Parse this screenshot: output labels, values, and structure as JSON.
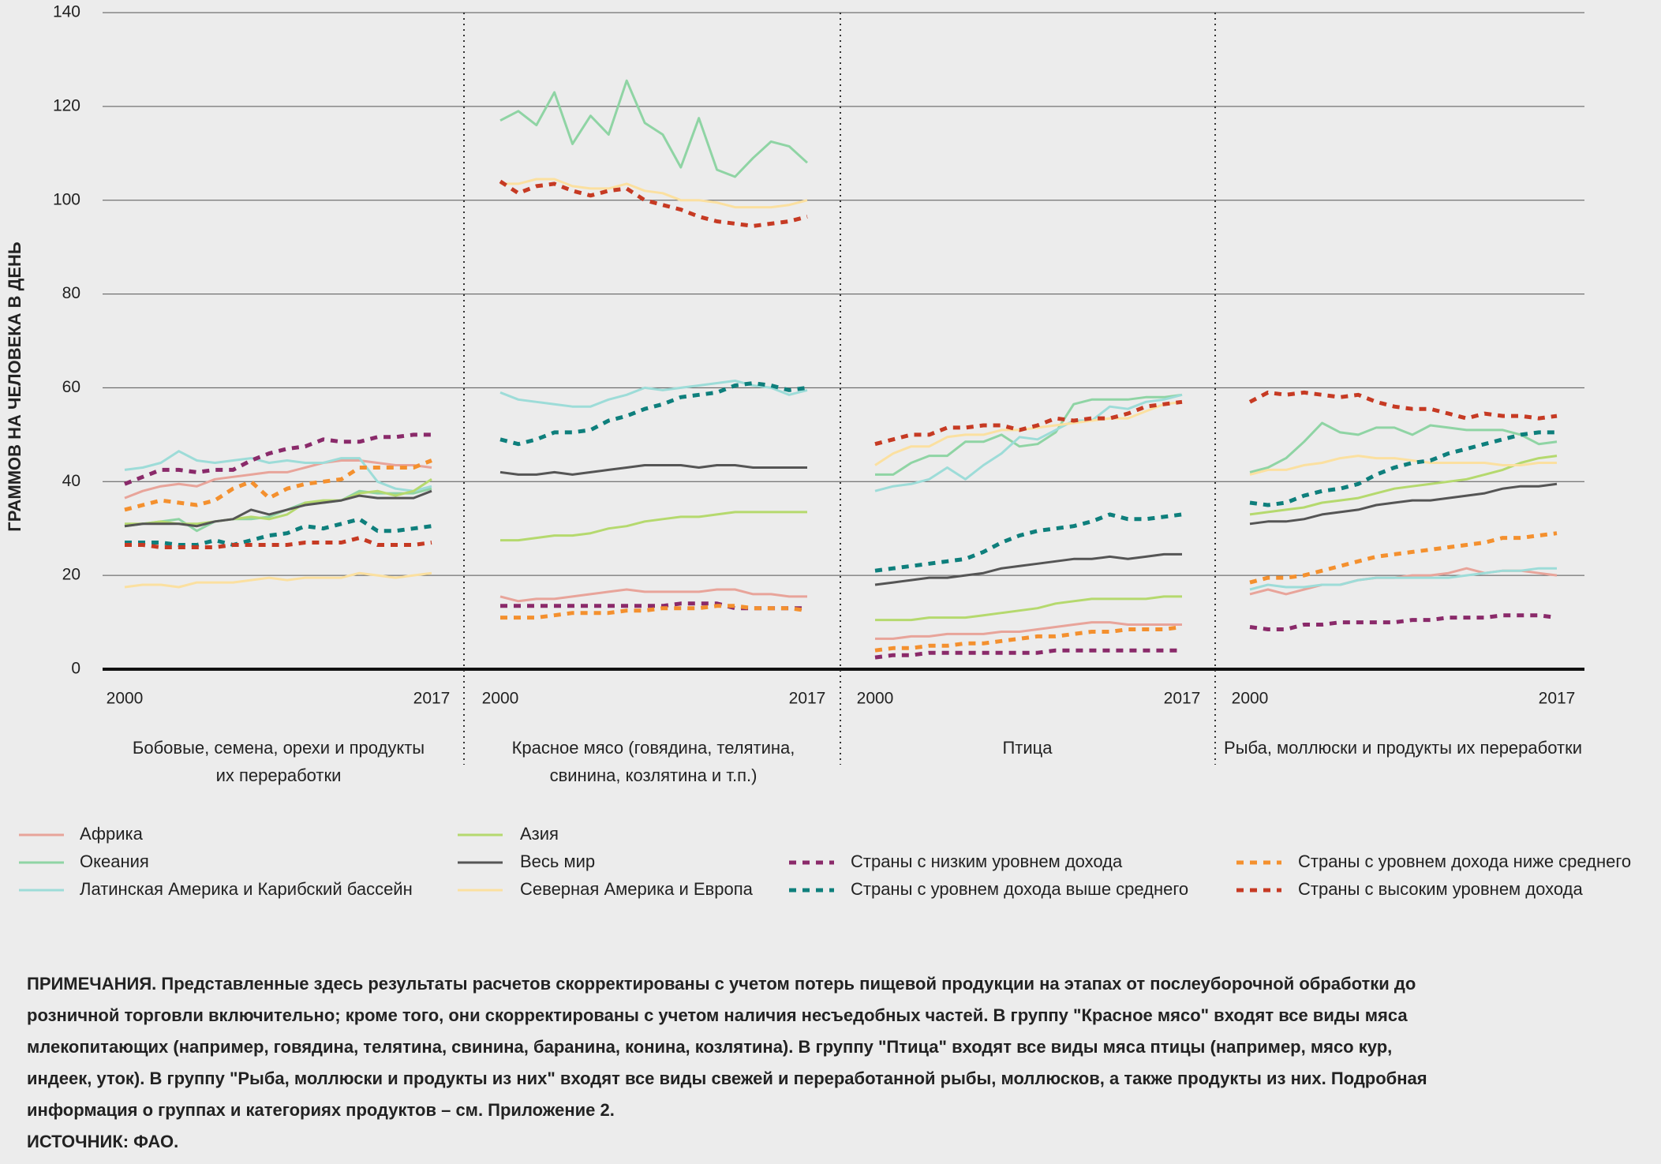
{
  "chart_data": {
    "type": "line",
    "y_label": "ГРАММОВ НА ЧЕЛОВЕКА В ДЕНЬ",
    "ylim": [
      0,
      140
    ],
    "yticks": [
      0,
      20,
      40,
      60,
      80,
      100,
      120,
      140
    ],
    "grid": true,
    "xlim": [
      2000,
      2017
    ],
    "xticks": [
      2000,
      2017
    ],
    "x": [
      2000,
      2001,
      2002,
      2003,
      2004,
      2005,
      2006,
      2007,
      2008,
      2009,
      2010,
      2011,
      2012,
      2013,
      2014,
      2015,
      2016,
      2017
    ],
    "series": [
      {
        "name": "Африка",
        "color": "#e8a49a",
        "dashed": false
      },
      {
        "name": "Океания",
        "color": "#8fd4a4",
        "dashed": false
      },
      {
        "name": "Латинская Америка и Карибский бассейн",
        "color": "#9ddcd8",
        "dashed": false
      },
      {
        "name": "Азия",
        "color": "#b5d96e",
        "dashed": false
      },
      {
        "name": "Весь мир",
        "color": "#555555",
        "dashed": false
      },
      {
        "name": "Северная Америка и Европа",
        "color": "#fbe0a0",
        "dashed": false
      },
      {
        "name": "Страны с низким уровнем дохода",
        "color": "#8a2a6a",
        "dashed": true
      },
      {
        "name": "Страны с уровнем дохода выше среднего",
        "color": "#0e7f7c",
        "dashed": true
      },
      {
        "name": "Страны с уровнем дохода ниже среднего",
        "color": "#f4902e",
        "dashed": true
      },
      {
        "name": "Страны с высоким уровнем дохода",
        "color": "#c63a23",
        "dashed": true
      }
    ],
    "panels": [
      {
        "title": [
          "Бобовые, семена, орехи и продукты",
          "их переработки"
        ],
        "values": [
          [
            36.5,
            38,
            39,
            39.5,
            39,
            40.5,
            41,
            41.5,
            42,
            42,
            43,
            44,
            44.5,
            44.5,
            44,
            43.5,
            43.5,
            43
          ],
          [
            30.5,
            31,
            31.5,
            32,
            29.5,
            31.5,
            32,
            32,
            32.5,
            34,
            35.5,
            35.5,
            36,
            38,
            37.5,
            37.5,
            37.5,
            38.5
          ],
          [
            42.5,
            43,
            44,
            46.5,
            44.5,
            44,
            44.5,
            45,
            44,
            44.5,
            44,
            44,
            45,
            45,
            40,
            38.5,
            38,
            39
          ],
          [
            31,
            31,
            31.5,
            31,
            31,
            31.5,
            32,
            32.5,
            32,
            33,
            35.5,
            36,
            36,
            37.5,
            38,
            37,
            38,
            40.5
          ],
          [
            30.5,
            31,
            31,
            31,
            30.5,
            31.5,
            32,
            34,
            33,
            34,
            35,
            35.5,
            36,
            37,
            36.5,
            36.5,
            36.5,
            38
          ],
          [
            17.5,
            18,
            18,
            17.5,
            18.5,
            18.5,
            18.5,
            19,
            19.5,
            19,
            19.5,
            19.5,
            19.5,
            20.5,
            20,
            19.5,
            20,
            20.5
          ],
          [
            39.5,
            41,
            42.5,
            42.5,
            42,
            42.5,
            42.5,
            44.5,
            46,
            47,
            47.5,
            49,
            48.5,
            48.5,
            49.5,
            49.5,
            50,
            50
          ],
          [
            27,
            27,
            27,
            26.5,
            26.5,
            27.5,
            26.5,
            27.5,
            28.5,
            29,
            30.5,
            30,
            31,
            32,
            29.5,
            29.5,
            30,
            30.5
          ],
          [
            34,
            35,
            36,
            35.5,
            35,
            36,
            38.5,
            40,
            36.5,
            38.5,
            39.5,
            40,
            40.5,
            43,
            43,
            43,
            43,
            44.5
          ],
          [
            26.5,
            26.5,
            26,
            26,
            26,
            26,
            26.5,
            26.5,
            26.5,
            26.5,
            27,
            27,
            27,
            28,
            26.5,
            26.5,
            26.5,
            27
          ]
        ]
      },
      {
        "title": [
          "Красное мясо (говядина, телятина,",
          "свинина, козлятина и т.п.)"
        ],
        "values": [
          [
            15.5,
            14.5,
            15,
            15,
            15.5,
            16,
            16.5,
            17,
            16.5,
            16.5,
            16.5,
            16.5,
            17,
            17,
            16,
            16,
            15.5,
            15.5
          ],
          [
            117,
            119,
            116,
            123,
            112,
            118,
            114,
            125.5,
            116.5,
            114,
            107,
            117.5,
            106.5,
            105,
            109,
            112.5,
            111.5,
            108
          ],
          [
            59,
            57.5,
            57,
            56.5,
            56,
            56,
            57.5,
            58.5,
            60,
            59.5,
            60,
            60.5,
            61,
            61.5,
            60.5,
            60,
            58.5,
            59.5
          ],
          [
            27.5,
            27.5,
            28,
            28.5,
            28.5,
            29,
            30,
            30.5,
            31.5,
            32,
            32.5,
            32.5,
            33,
            33.5,
            33.5,
            33.5,
            33.5,
            33.5
          ],
          [
            42,
            41.5,
            41.5,
            42,
            41.5,
            42,
            42.5,
            43,
            43.5,
            43.5,
            43.5,
            43,
            43.5,
            43.5,
            43,
            43,
            43,
            43
          ],
          [
            103.5,
            103.5,
            104.5,
            104.5,
            103,
            102.5,
            102.5,
            103.5,
            102,
            101.5,
            100,
            100,
            99.5,
            98.5,
            98.5,
            98.5,
            99,
            100
          ],
          [
            13.5,
            13.5,
            13.5,
            13.5,
            13.5,
            13.5,
            13.5,
            13.5,
            13.5,
            13.5,
            14,
            14,
            14,
            13,
            13,
            13,
            13,
            13
          ],
          [
            49,
            48,
            49,
            50.5,
            50.5,
            51,
            53,
            54,
            55.5,
            56.5,
            58,
            58.5,
            59,
            60.5,
            61,
            60.5,
            59.5,
            60
          ],
          [
            11,
            11,
            11,
            11.5,
            12,
            12,
            12,
            12.5,
            12.5,
            13,
            13,
            13,
            13.5,
            13.5,
            13,
            13,
            13,
            12.5
          ],
          [
            104,
            101.5,
            103,
            103.5,
            102,
            101,
            102,
            102.5,
            100,
            99,
            98,
            96.5,
            95.5,
            95,
            94.5,
            95,
            95.5,
            96.5
          ]
        ]
      },
      {
        "title": [
          "Птица"
        ],
        "values": [
          [
            6.5,
            6.5,
            7,
            7,
            7.5,
            7.5,
            7.5,
            8,
            8,
            8.5,
            9,
            9.5,
            10,
            10,
            9.5,
            9.5,
            9.5,
            9.5
          ],
          [
            41.5,
            41.5,
            44,
            45.5,
            45.5,
            48.5,
            48.5,
            50,
            47.5,
            48,
            50.5,
            56.5,
            57.5,
            57.5,
            57.5,
            58,
            58,
            58.5
          ],
          [
            38,
            39,
            39.5,
            40.5,
            43,
            40.5,
            43.5,
            46,
            49.5,
            49,
            51,
            53,
            53,
            56,
            55.5,
            57,
            57.5,
            58.5
          ],
          [
            10.5,
            10.5,
            10.5,
            11,
            11,
            11,
            11.5,
            12,
            12.5,
            13,
            14,
            14.5,
            15,
            15,
            15,
            15,
            15.5,
            15.5
          ],
          [
            18,
            18.5,
            19,
            19.5,
            19.5,
            20,
            20.5,
            21.5,
            22,
            22.5,
            23,
            23.5,
            23.5,
            24,
            23.5,
            24,
            24.5,
            24.5
          ],
          [
            43.5,
            46,
            47.5,
            47.5,
            49.5,
            50,
            50,
            51,
            51,
            51.5,
            52,
            52.5,
            53,
            53.5,
            53.5,
            55,
            56.5,
            57
          ],
          [
            2.5,
            3,
            3,
            3.5,
            3.5,
            3.5,
            3.5,
            3.5,
            3.5,
            3.5,
            4,
            4,
            4,
            4,
            4,
            4,
            4,
            4
          ],
          [
            21,
            21.5,
            22,
            22.5,
            23,
            23.5,
            25,
            27,
            28.5,
            29.5,
            30,
            30.5,
            31.5,
            33,
            32,
            32,
            32.5,
            33
          ],
          [
            4,
            4.5,
            4.5,
            5,
            5,
            5.5,
            5.5,
            6,
            6.5,
            7,
            7,
            7.5,
            8,
            8,
            8.5,
            8.5,
            8.5,
            9
          ],
          [
            48,
            49,
            50,
            50,
            51.5,
            51.5,
            52,
            52,
            51,
            52,
            53.5,
            53,
            53.5,
            53.5,
            54.5,
            56,
            56.5,
            57
          ]
        ]
      },
      {
        "title": [
          "Рыба, моллюски и продукты их переработки"
        ],
        "values": [
          [
            16,
            17,
            16,
            17,
            18,
            18,
            19,
            19.5,
            19.5,
            20,
            20,
            20.5,
            21.5,
            20.5,
            21,
            21,
            20.5,
            20
          ],
          [
            42,
            43,
            45,
            48.5,
            52.5,
            50.5,
            50,
            51.5,
            51.5,
            50,
            52,
            51.5,
            51,
            51,
            51,
            50,
            48,
            48.5
          ],
          [
            17,
            18,
            17.5,
            17.5,
            18,
            18,
            19,
            19.5,
            19.5,
            19.5,
            19.5,
            19.5,
            20,
            20.5,
            21,
            21,
            21.5,
            21.5
          ],
          [
            33,
            33.5,
            34,
            34.5,
            35.5,
            36,
            36.5,
            37.5,
            38.5,
            39,
            39.5,
            40,
            40.5,
            41.5,
            42.5,
            44,
            45,
            45.5
          ],
          [
            31,
            31.5,
            31.5,
            32,
            33,
            33.5,
            34,
            35,
            35.5,
            36,
            36,
            36.5,
            37,
            37.5,
            38.5,
            39,
            39,
            39.5
          ],
          [
            41.5,
            42.5,
            42.5,
            43.5,
            44,
            45,
            45.5,
            45,
            45,
            44.5,
            44,
            44,
            44,
            44,
            43.5,
            43.5,
            44,
            44
          ],
          [
            9,
            8.5,
            8.5,
            9.5,
            9.5,
            10,
            10,
            10,
            10,
            10.5,
            10.5,
            11,
            11,
            11,
            11.5,
            11.5,
            11.5,
            11
          ],
          [
            35.5,
            35,
            35.5,
            37,
            38,
            38.5,
            39.5,
            41.5,
            43,
            44,
            44.5,
            46,
            47,
            48,
            49,
            50,
            50.5,
            50.5
          ],
          [
            18.5,
            19.5,
            19.5,
            20,
            21,
            22,
            23,
            24,
            24.5,
            25,
            25.5,
            26,
            26.5,
            27,
            28,
            28,
            28.5,
            29
          ],
          [
            57,
            59,
            58.5,
            59,
            58.5,
            58,
            58.5,
            57,
            56,
            55.5,
            55.5,
            54.5,
            53.5,
            54.5,
            54,
            54,
            53.5,
            54
          ]
        ]
      }
    ],
    "notes": [
      "ПРИМЕЧАНИЯ. Представленные здесь результаты расчетов скорректированы с учетом потерь пищевой продукции на этапах от послеуборочной обработки до",
      "розничной торговли включительно; кроме того, они скорректированы с учетом наличия несъедобных частей. В группу \"Красное мясо\" входят все виды мяса",
      "млекопитающих (например, говядина, телятина, свинина, баранина, конина, козлятина). В группу \"Птица\" входят все виды мяса птицы (например, мясо кур,",
      "индеек, уток). В группу \"Рыба, моллюски и продукты из них\" входят все виды свежей и переработанной рыбы, моллюсков, а также продукты из них. Подробная",
      "информация о группах и категориях продуктов – см. Приложение 2.",
      "ИСТОЧНИК: ФАО."
    ]
  }
}
